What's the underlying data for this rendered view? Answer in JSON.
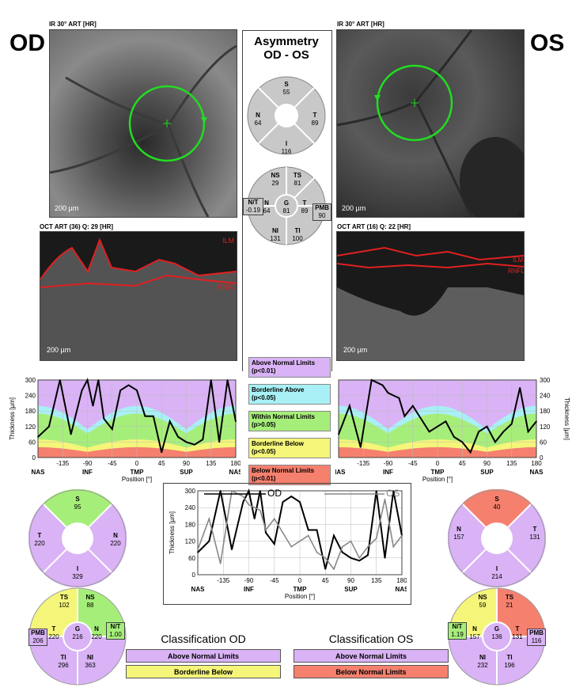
{
  "eyes": {
    "od": "OD",
    "os": "OS"
  },
  "asymmetry": {
    "title_line1": "Asymmetry",
    "title_line2": "OD - OS"
  },
  "od": {
    "ir_caption": "IR 30° ART [HR]",
    "oct_caption": "OCT ART (36) Q: 29 [HR]",
    "scale": "200 µm",
    "ilm": "ILM",
    "rnfl": "RNFL"
  },
  "os": {
    "ir_caption": "IR 30° ART [HR]",
    "oct_caption": "OCT ART (16) Q: 22 [HR]",
    "scale": "200 µm",
    "ilm": "ILM",
    "rnfl": "RNFL"
  },
  "asym_quad": {
    "S": "55",
    "T": "89",
    "I": "116",
    "N": "64"
  },
  "asym_sect": {
    "NS": "29",
    "TS": "81",
    "N": "64",
    "G": "81",
    "T": "89",
    "PMB": "90",
    "NI": "131",
    "TI": "100",
    "NT": "-0.19"
  },
  "legend": [
    {
      "l1": "Above Normal Limits",
      "l2": "(p<0.01)",
      "color": "#d9b3f5"
    },
    {
      "l1": "Borderline Above",
      "l2": "(p<0.05)",
      "color": "#a8f0f5"
    },
    {
      "l1": "Within Normal Limits",
      "l2": "(p>0.05)",
      "color": "#a6ee7a"
    },
    {
      "l1": "Borderline Below",
      "l2": "(p<0.05)",
      "color": "#f5f57a"
    },
    {
      "l1": "Below Normal Limits",
      "l2": "(p<0.01)",
      "color": "#f5806e"
    }
  ],
  "axis": {
    "ylabel": "Thickness [µm]",
    "xlabel": "Position [°]",
    "yticks": [
      "0",
      "60",
      "120",
      "180",
      "240",
      "300"
    ],
    "xticks": [
      "-135",
      "-90",
      "-45",
      "0",
      "45",
      "90",
      "135",
      "180"
    ],
    "regions": [
      "NAS",
      "INF",
      "TMP",
      "SUP",
      "NAS"
    ]
  },
  "compare": {
    "od": "OD",
    "os": "OS"
  },
  "od_quad": {
    "S": "95",
    "T": "220",
    "N": "220",
    "I": "329"
  },
  "od_sect": {
    "TS": "102",
    "NS": "88",
    "PMB": "206",
    "T": "220",
    "G": "216",
    "N": "220",
    "NT": "1.00",
    "TI": "296",
    "NI": "363"
  },
  "os_quad": {
    "S": "40",
    "N": "157",
    "T": "131",
    "I": "214"
  },
  "os_sect": {
    "NS": "59",
    "TS": "21",
    "NT": "1.19",
    "N": "157",
    "G": "136",
    "T": "131",
    "PMB": "116",
    "NI": "232",
    "TI": "196"
  },
  "classification": {
    "od_title": "Classification OD",
    "os_title": "Classification OS",
    "od": [
      "Above Normal Limits",
      "Borderline Below"
    ],
    "os": [
      "Above Normal Limits",
      "Below Normal Limits"
    ],
    "od_colors": [
      "#d9b3f5",
      "#f5f57a"
    ],
    "os_colors": [
      "#d9b3f5",
      "#f5806e"
    ]
  },
  "chart_data": [
    {
      "type": "line",
      "name_ref": "od_profile",
      "x": [
        -180,
        -160,
        -140,
        -120,
        -100,
        -90,
        -80,
        -70,
        -60,
        -45,
        -30,
        -15,
        0,
        15,
        30,
        45,
        60,
        75,
        90,
        105,
        120,
        135,
        150,
        165,
        180
      ],
      "series": [
        {
          "values": [
            80,
            120,
            300,
            90,
            260,
            300,
            200,
            300,
            150,
            110,
            260,
            280,
            260,
            160,
            160,
            20,
            140,
            80,
            60,
            50,
            70,
            300,
            60,
            300,
            140
          ]
        }
      ],
      "xlabel": "Position [°]",
      "ylabel": "Thickness [µm]",
      "ylim": [
        0,
        300
      ]
    },
    {
      "type": "line",
      "name_ref": "os_profile",
      "x": [
        -180,
        -160,
        -140,
        -120,
        -100,
        -90,
        -80,
        -70,
        -60,
        -45,
        -30,
        -15,
        0,
        15,
        30,
        45,
        60,
        75,
        90,
        105,
        120,
        135,
        150,
        165,
        180
      ],
      "series": [
        {
          "values": [
            90,
            200,
            40,
            300,
            280,
            250,
            240,
            230,
            160,
            200,
            150,
            100,
            120,
            140,
            80,
            60,
            20,
            100,
            120,
            60,
            100,
            130,
            270,
            100,
            140
          ]
        }
      ],
      "xlabel": "Position [°]",
      "ylabel": "Thickness [µm]",
      "ylim": [
        0,
        300
      ]
    }
  ]
}
